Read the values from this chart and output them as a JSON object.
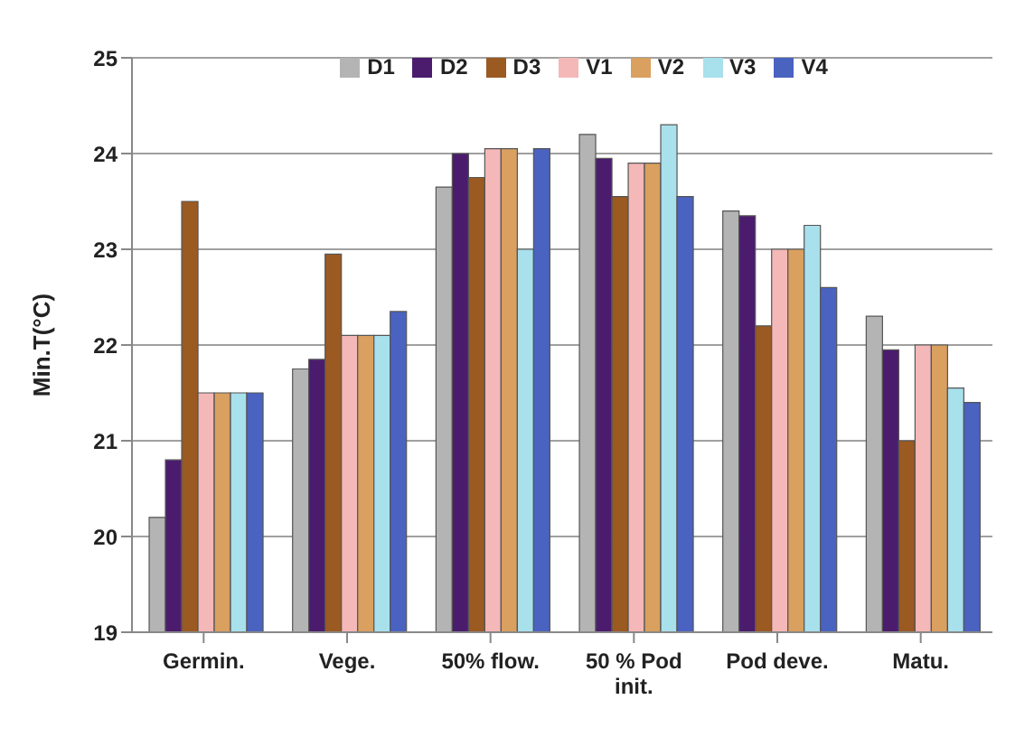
{
  "chart_data": {
    "type": "bar",
    "ylabel": "Min.T(°C)",
    "categories": [
      "Germin.",
      "Vege.",
      "50% flow.",
      "50 % Pod init.",
      "Pod deve.",
      "Matu."
    ],
    "series": [
      {
        "name": "D1",
        "color": "#b4b4b4",
        "values": [
          20.2,
          21.75,
          23.65,
          24.2,
          23.4,
          22.3
        ]
      },
      {
        "name": "D2",
        "color": "#4b1c6e",
        "values": [
          20.8,
          21.85,
          24.0,
          23.95,
          23.35,
          21.95
        ]
      },
      {
        "name": "D3",
        "color": "#9a5a22",
        "values": [
          23.5,
          22.95,
          23.75,
          23.55,
          22.2,
          21.0
        ]
      },
      {
        "name": "V1",
        "color": "#f4b8b8",
        "values": [
          21.5,
          22.1,
          24.05,
          23.9,
          23.0,
          22.0
        ]
      },
      {
        "name": "V2",
        "color": "#d9a060",
        "values": [
          21.5,
          22.1,
          24.05,
          23.9,
          23.0,
          22.0
        ]
      },
      {
        "name": "V3",
        "color": "#a8e0ec",
        "values": [
          21.5,
          22.1,
          23.0,
          24.3,
          23.25,
          21.55
        ]
      },
      {
        "name": "V4",
        "color": "#4a62c0",
        "values": [
          21.5,
          22.35,
          24.05,
          23.55,
          22.6,
          21.4
        ]
      }
    ],
    "ylim": [
      19,
      25
    ],
    "yticks": [
      19,
      20,
      21,
      22,
      23,
      24,
      25
    ],
    "grid": "y",
    "legend": "top"
  }
}
